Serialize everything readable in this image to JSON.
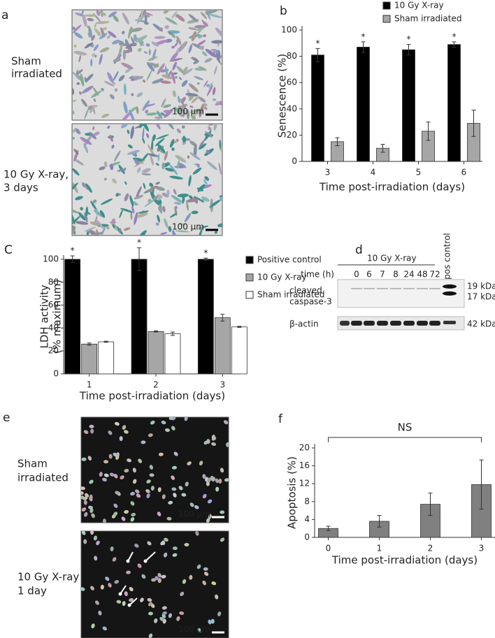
{
  "panel_labels": {
    "a": "a",
    "b": "b",
    "c": "C",
    "d": "d",
    "e": "e",
    "f": "f"
  },
  "micrograph_a": {
    "labels": [
      [
        "Sham",
        "irradiated"
      ],
      [
        "10 Gy X-ray,",
        "3 days"
      ]
    ],
    "scale_bar": "100 μm"
  },
  "micrograph_e": {
    "labels": [
      [
        "Sham",
        "irradiated"
      ],
      [
        "10 Gy X-ray",
        "1 day"
      ]
    ],
    "scale_bar": "100 μm"
  },
  "western_blot": {
    "treatment": "10 Gy X-ray",
    "time_label": "time (h)",
    "times": [
      0,
      6,
      7,
      8,
      24,
      48,
      72
    ],
    "pos_control": "pos control",
    "bands": [
      {
        "label": [
          "cleaved",
          "caspase-3"
        ],
        "sizes": [
          "19 kDa",
          "17 kDa"
        ]
      },
      {
        "label": [
          "β-actin"
        ],
        "sizes": [
          "42 kDa"
        ]
      }
    ]
  },
  "chart_data": [
    {
      "type": "bar",
      "xlabel": "Time post-irradiation (days)",
      "ylabel": [
        "Senescence (%)"
      ],
      "categories": [
        "3",
        "4",
        "5",
        "6"
      ],
      "series": [
        {
          "name": "10 Gy X-ray",
          "color": "#000000",
          "values": [
            81,
            87,
            85,
            89
          ],
          "errors": [
            5,
            4,
            4,
            2
          ]
        },
        {
          "name": "Sham irradiated",
          "color": "#a6a6a6",
          "values": [
            15,
            10,
            23,
            29
          ],
          "errors": [
            3,
            3,
            7,
            10
          ]
        }
      ],
      "annotations": [
        "*",
        "*",
        "*",
        "*"
      ],
      "ylim": [
        0,
        100
      ],
      "yticks": [
        0,
        20,
        40,
        60,
        80,
        100
      ]
    },
    {
      "type": "bar",
      "xlabel": "Time post-irradiation (days)",
      "ylabel": [
        "LDH activity",
        "(% maximum)"
      ],
      "categories": [
        "1",
        "2",
        "3"
      ],
      "series": [
        {
          "name": "Positive control",
          "color": "#000000",
          "values": [
            100,
            100,
            100
          ],
          "errors": [
            3,
            10,
            1
          ]
        },
        {
          "name": "10 Gy X-ray",
          "color": "#a6a6a6",
          "values": [
            26,
            37,
            49
          ],
          "errors": [
            1,
            0.5,
            3
          ]
        },
        {
          "name": "Sham irradiated",
          "color": "#ffffff",
          "values": [
            28,
            35,
            41
          ],
          "errors": [
            0.5,
            1.5,
            0.5
          ]
        }
      ],
      "annotations": [
        "*",
        "*",
        "*"
      ],
      "ylim": [
        0,
        100
      ],
      "yticks": [
        0,
        20,
        40,
        60,
        80,
        100
      ]
    },
    {
      "type": "bar",
      "xlabel": "Time post-irradiation (days)",
      "ylabel": [
        "Apoptosis  (%)"
      ],
      "categories": [
        "0",
        "1",
        "2",
        "3"
      ],
      "series": [
        {
          "color": "#808080",
          "values": [
            2,
            3.6,
            7.4,
            11.8
          ],
          "errors": [
            0.5,
            1.3,
            2.5,
            5.5
          ]
        }
      ],
      "bracket_label": "NS",
      "ylim": [
        0,
        20
      ],
      "yticks": [
        0,
        4,
        8,
        12,
        16,
        20
      ]
    }
  ]
}
